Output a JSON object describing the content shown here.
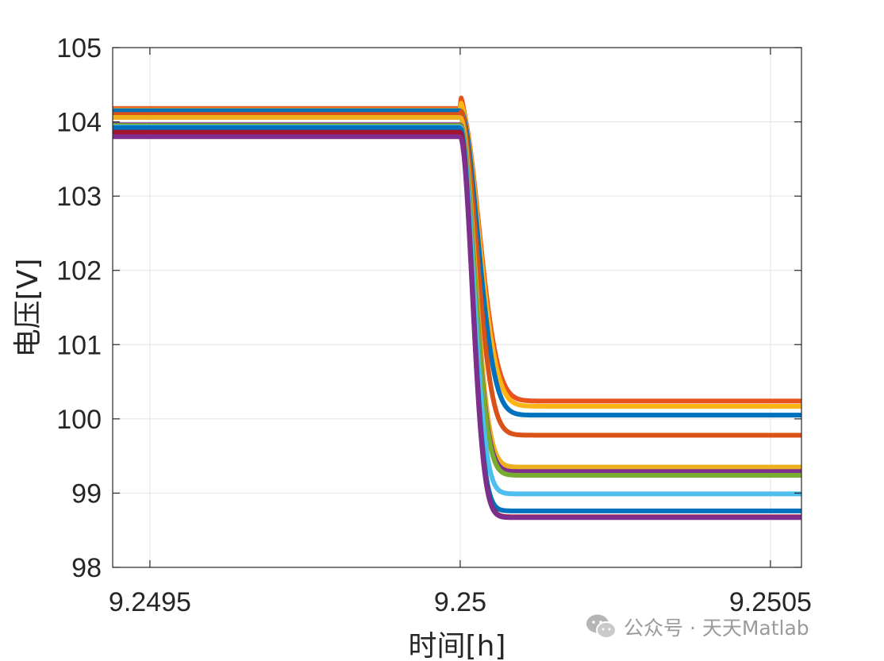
{
  "chart_data": {
    "type": "line",
    "xlabel": "时间[h]",
    "ylabel": "电压[V]",
    "xlim": [
      9.24944,
      9.25055
    ],
    "ylim": [
      98,
      105
    ],
    "xticks": [
      9.2495,
      9.25,
      9.2505
    ],
    "xtick_labels": [
      "9.2495",
      "9.25",
      "9.2505"
    ],
    "yticks": [
      98,
      99,
      100,
      101,
      102,
      103,
      104,
      105
    ],
    "ytick_labels": [
      "98",
      "99",
      "100",
      "101",
      "102",
      "103",
      "104",
      "105"
    ],
    "grid": true,
    "step_time": 9.25,
    "series": [
      {
        "color": "#E8531C",
        "initial": 104.18,
        "overshoot": 0.15,
        "final": 100.24,
        "tau": 4.2e-05
      },
      {
        "color": "#FDB515",
        "initial": 104.16,
        "overshoot": 0.1,
        "final": 100.17,
        "tau": 4.1e-05
      },
      {
        "color": "#0072BD",
        "initial": 104.15,
        "overshoot": 0.0,
        "final": 100.05,
        "tau": 3.9e-05
      },
      {
        "color": "#D95319",
        "initial": 104.1,
        "overshoot": 0.05,
        "final": 99.78,
        "tau": 3.6e-05
      },
      {
        "color": "#EDB120",
        "initial": 104.06,
        "overshoot": 0.0,
        "final": 99.35,
        "tau": 3.2e-05
      },
      {
        "color": "#7E2F8E",
        "initial": 103.96,
        "overshoot": 0.0,
        "final": 99.29,
        "tau": 3.1e-05
      },
      {
        "color": "#77AC30",
        "initial": 103.95,
        "overshoot": 0.0,
        "final": 99.24,
        "tau": 3.1e-05
      },
      {
        "color": "#4DBEEE",
        "initial": 103.93,
        "overshoot": 0.0,
        "final": 98.99,
        "tau": 2.9e-05
      },
      {
        "color": "#0072BD",
        "initial": 103.92,
        "overshoot": 0.0,
        "final": 98.76,
        "tau": 2.7e-05
      },
      {
        "color": "#A2142F",
        "initial": 103.86,
        "overshoot": 0.0,
        "final": 98.68,
        "tau": 2.7e-05
      },
      {
        "color": "#7E2F8E",
        "initial": 103.8,
        "overshoot": 0.0,
        "final": 98.67,
        "tau": 2.7e-05
      }
    ]
  },
  "watermark": {
    "icon": "wechat-icon",
    "text": "公众号 · 天天Matlab"
  }
}
